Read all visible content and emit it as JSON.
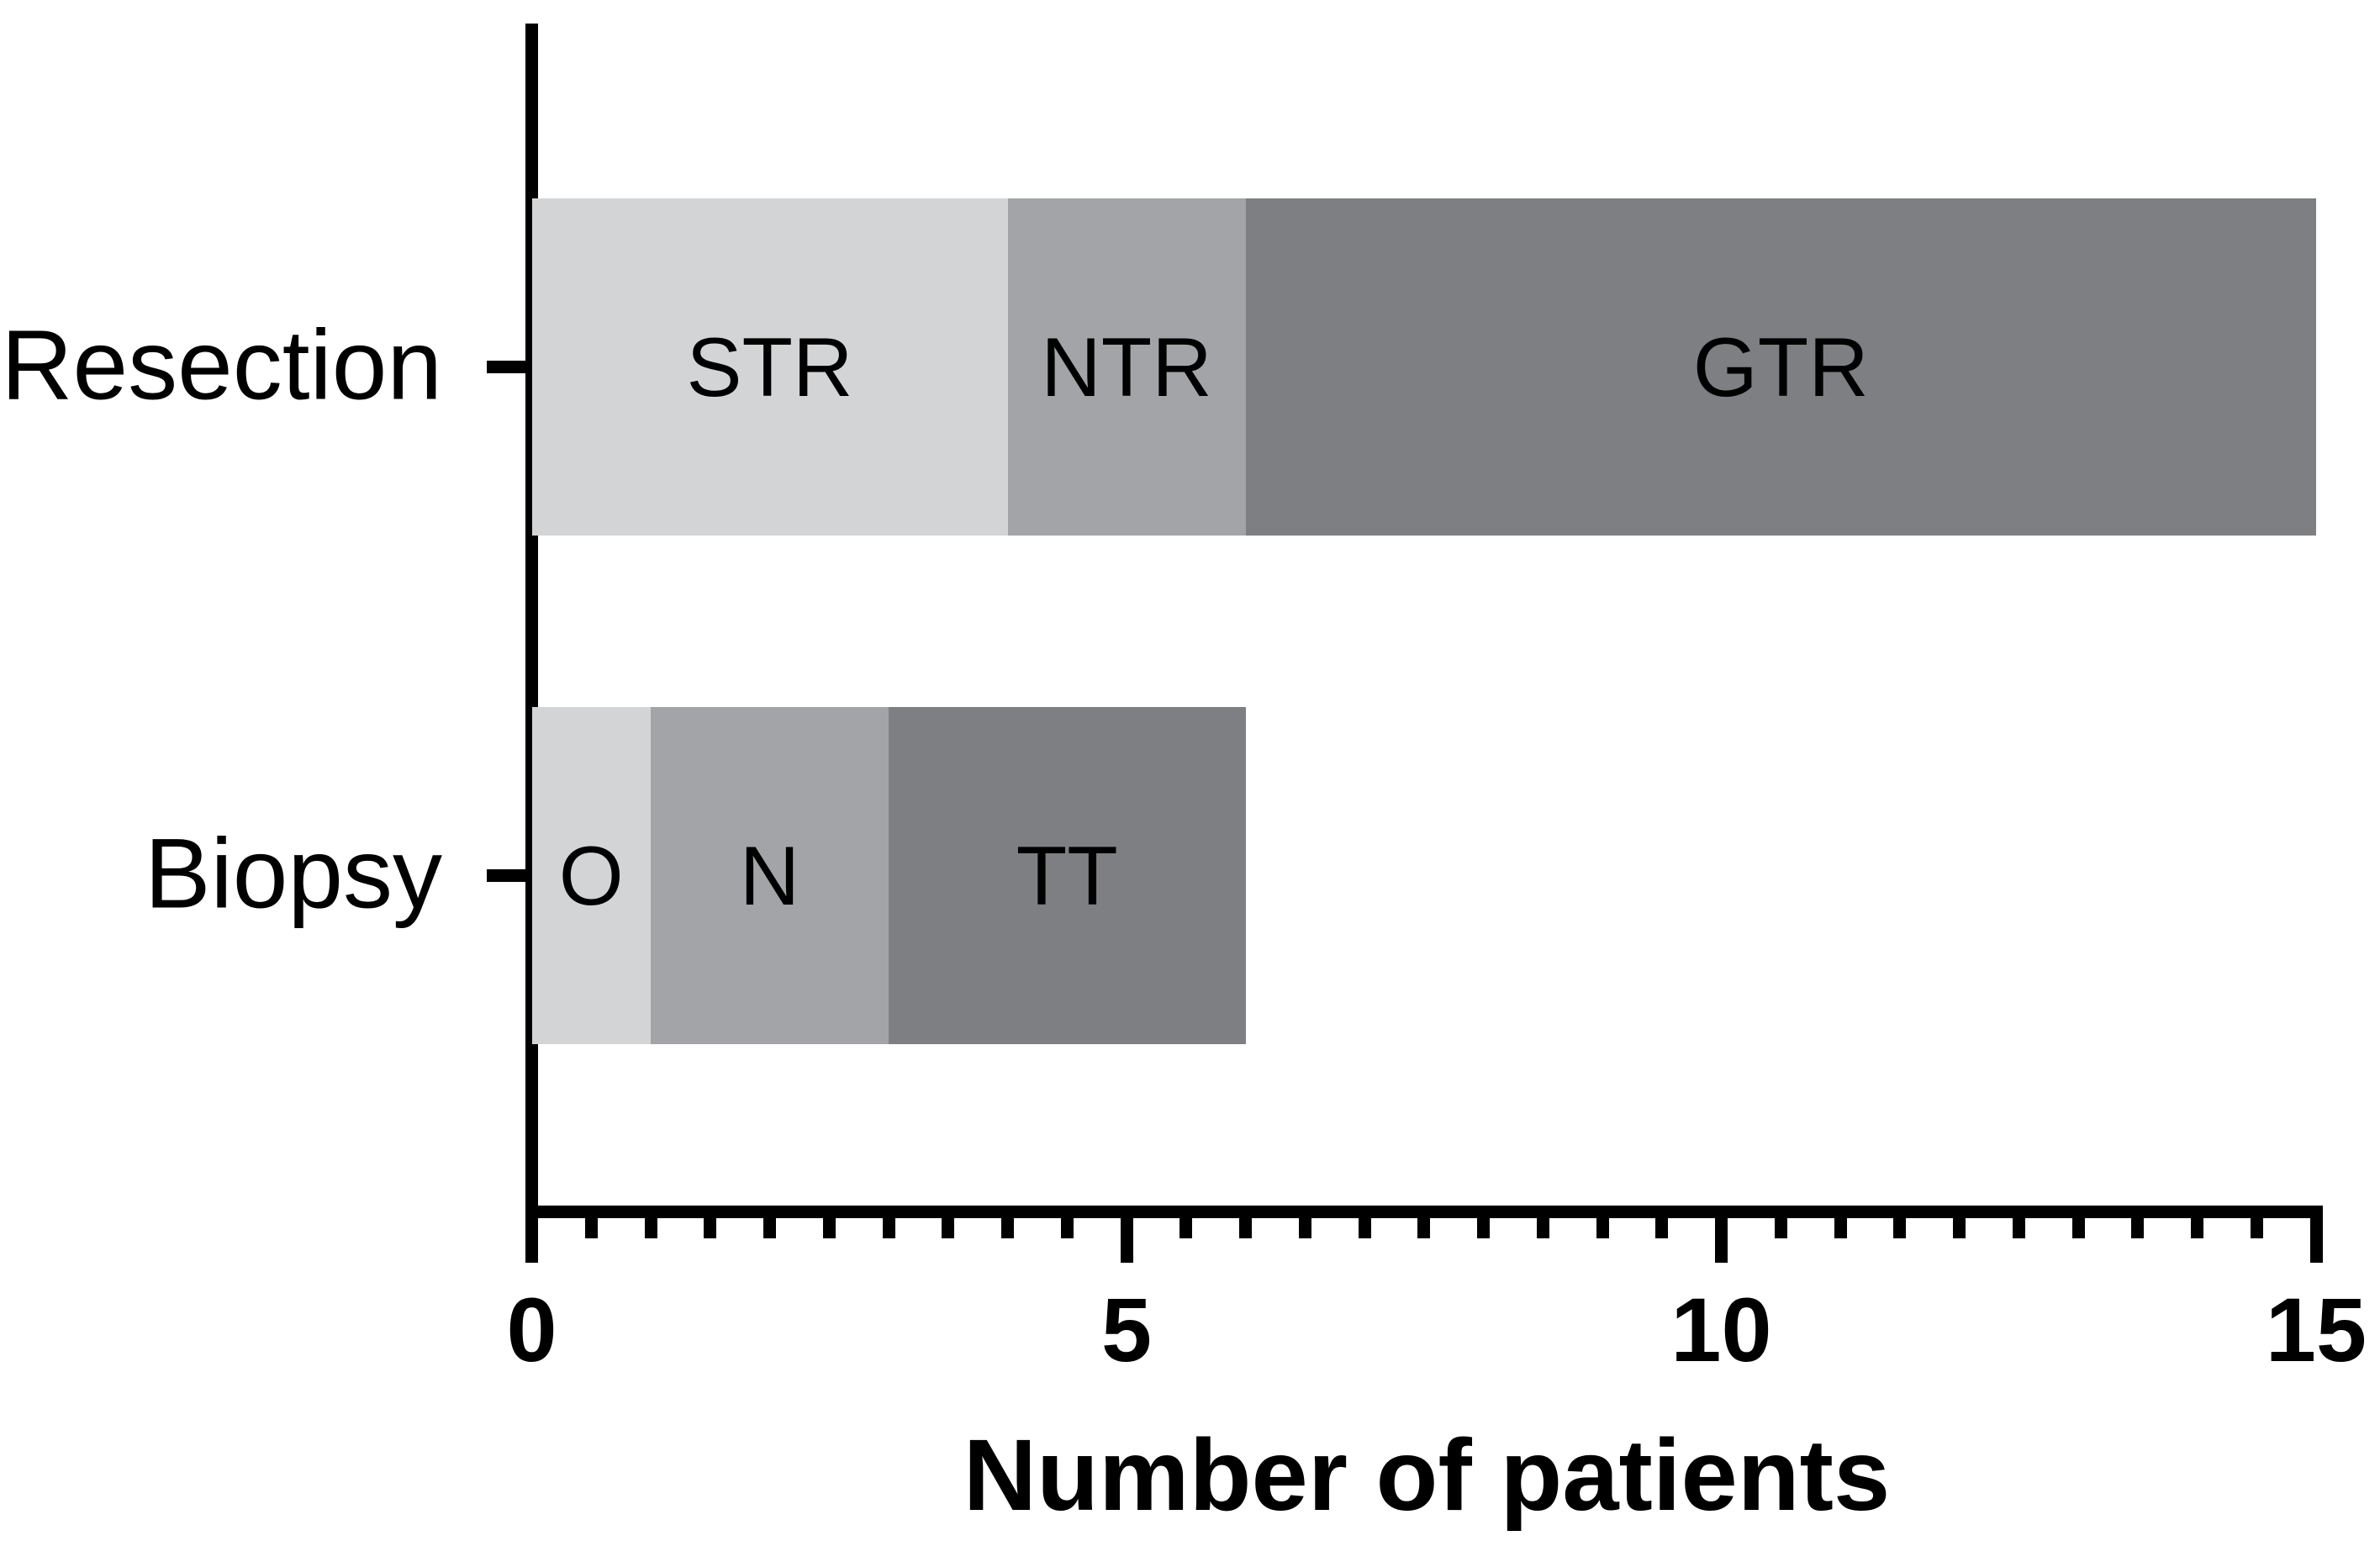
{
  "chart_data": {
    "type": "bar",
    "orientation": "horizontal",
    "stacked": true,
    "title": "",
    "xlabel": "Number of patients",
    "ylabel": "",
    "xlim": [
      0,
      15
    ],
    "x_major_ticks": [
      0,
      5,
      10,
      15
    ],
    "x_major_tick_labels": [
      "0",
      "5",
      "10",
      "15"
    ],
    "x_minor_tick_step": 0.5,
    "grid": "off",
    "legend": "none",
    "axis_color": "#000000",
    "categories": [
      "Resection",
      "Biopsy"
    ],
    "bars": [
      {
        "category": "Resection",
        "total": 15,
        "segments": [
          {
            "label": "STR",
            "value": 4,
            "color": "#d3d4d6"
          },
          {
            "label": "NTR",
            "value": 2,
            "color": "#a3a4a8"
          },
          {
            "label": "GTR",
            "value": 9,
            "color": "#7e7f83"
          }
        ]
      },
      {
        "category": "Biopsy",
        "total": 6,
        "segments": [
          {
            "label": "O",
            "value": 1,
            "color": "#d3d4d6"
          },
          {
            "label": "N",
            "value": 2,
            "color": "#a3a4a8"
          },
          {
            "label": "TT",
            "value": 3,
            "color": "#7e7f83"
          }
        ]
      }
    ]
  }
}
